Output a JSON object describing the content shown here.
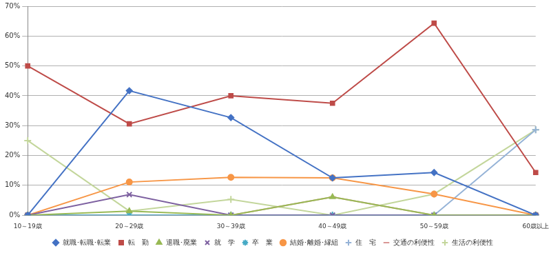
{
  "chart_data": {
    "type": "line",
    "categories": [
      "10～19歳",
      "20～29歳",
      "30～39歳",
      "40～49歳",
      "50～59歳",
      "60歳以上"
    ],
    "series": [
      {
        "name": "就職･転職･転業",
        "color": "#4472C4",
        "marker": "diamond",
        "values": [
          0,
          41.7,
          32.7,
          12.5,
          14.3,
          0
        ]
      },
      {
        "name": "転　勤",
        "color": "#BE4B48",
        "marker": "square",
        "values": [
          50,
          30.6,
          40.0,
          37.5,
          64.3,
          14.3
        ]
      },
      {
        "name": "退職･廃業",
        "color": "#98B954",
        "marker": "triangle",
        "values": [
          0,
          1.4,
          0,
          6.1,
          0,
          0
        ]
      },
      {
        "name": "就　学",
        "color": "#7D60A0",
        "marker": "x",
        "values": [
          0,
          6.9,
          0,
          0,
          0,
          0
        ]
      },
      {
        "name": "卒　業",
        "color": "#46AAC5",
        "marker": "star",
        "values": [
          0,
          0,
          0,
          0,
          0,
          0
        ]
      },
      {
        "name": "結婚･離婚･縁組",
        "color": "#F79646",
        "marker": "circle",
        "values": [
          0,
          11.1,
          12.7,
          12.5,
          7.1,
          0
        ]
      },
      {
        "name": "住　宅",
        "color": "#95B3D7",
        "marker": "plus",
        "values": [
          0,
          0,
          0,
          0,
          0,
          28.6
        ]
      },
      {
        "name": "交通の利便性",
        "color": "#D99694",
        "marker": "dash",
        "values": [
          0,
          0,
          0,
          6.1,
          0,
          0
        ]
      },
      {
        "name": "生活の利便性",
        "color": "#C3D69B",
        "marker": "plus",
        "values": [
          25,
          1.4,
          5.3,
          0,
          7.1,
          28.6
        ]
      }
    ],
    "ylim": [
      0,
      70
    ],
    "yticks": [
      {
        "value": 0,
        "label": "0%"
      },
      {
        "value": 10,
        "label": "10%"
      },
      {
        "value": 20,
        "label": "20%"
      },
      {
        "value": 30,
        "label": "30%"
      },
      {
        "value": 40,
        "label": "40%"
      },
      {
        "value": 50,
        "label": "50%"
      },
      {
        "value": 60,
        "label": "60%"
      },
      {
        "value": 70,
        "label": "70%"
      }
    ],
    "grid": true,
    "legend": "bottom"
  }
}
